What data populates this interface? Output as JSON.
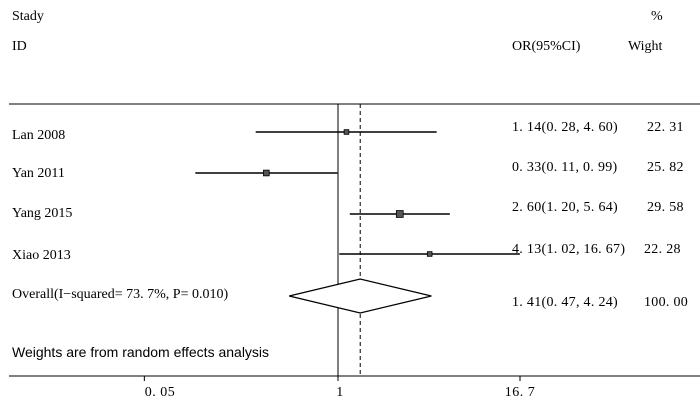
{
  "chart_data": {
    "type": "forest",
    "header": {
      "study_label": "Stady",
      "id_label": "ID",
      "percent_label": "%",
      "effect_label": "OR(95%CI)",
      "weight_label": "Wight"
    },
    "studies": [
      {
        "name": "Lan 2008",
        "or": 1.14,
        "lower": 0.28,
        "upper": 4.6,
        "ci_text": "1. 14(0. 28, 4. 60)",
        "weight": "22. 31"
      },
      {
        "name": "Yan 2011",
        "or": 0.33,
        "lower": 0.11,
        "upper": 0.99,
        "ci_text": "0. 33(0. 11, 0. 99)",
        "weight": "25. 82"
      },
      {
        "name": "Yang 2015",
        "or": 2.6,
        "lower": 1.2,
        "upper": 5.64,
        "ci_text": "2. 60(1. 20, 5. 64)",
        "weight": "29. 58"
      },
      {
        "name": "Xiao  2013",
        "or": 4.13,
        "lower": 1.02,
        "upper": 16.67,
        "ci_text": "4. 13(1. 02, 16. 67)",
        "weight": "22. 28"
      }
    ],
    "overall": {
      "label": "Overall(I−squared= 73. 7%, P= 0.010)",
      "or": 1.41,
      "lower": 0.47,
      "upper": 4.24,
      "ci_text": "1. 41(0. 47, 4. 24)",
      "weight": "100. 00"
    },
    "footnote": "Weights are from random effects analysis",
    "x_ticks": [
      {
        "value": 0.05,
        "label": "0. 05"
      },
      {
        "value": 1,
        "label": "1"
      },
      {
        "value": 16.7,
        "label": "16. 7"
      }
    ],
    "null_line": 1,
    "x_scale": "log"
  }
}
